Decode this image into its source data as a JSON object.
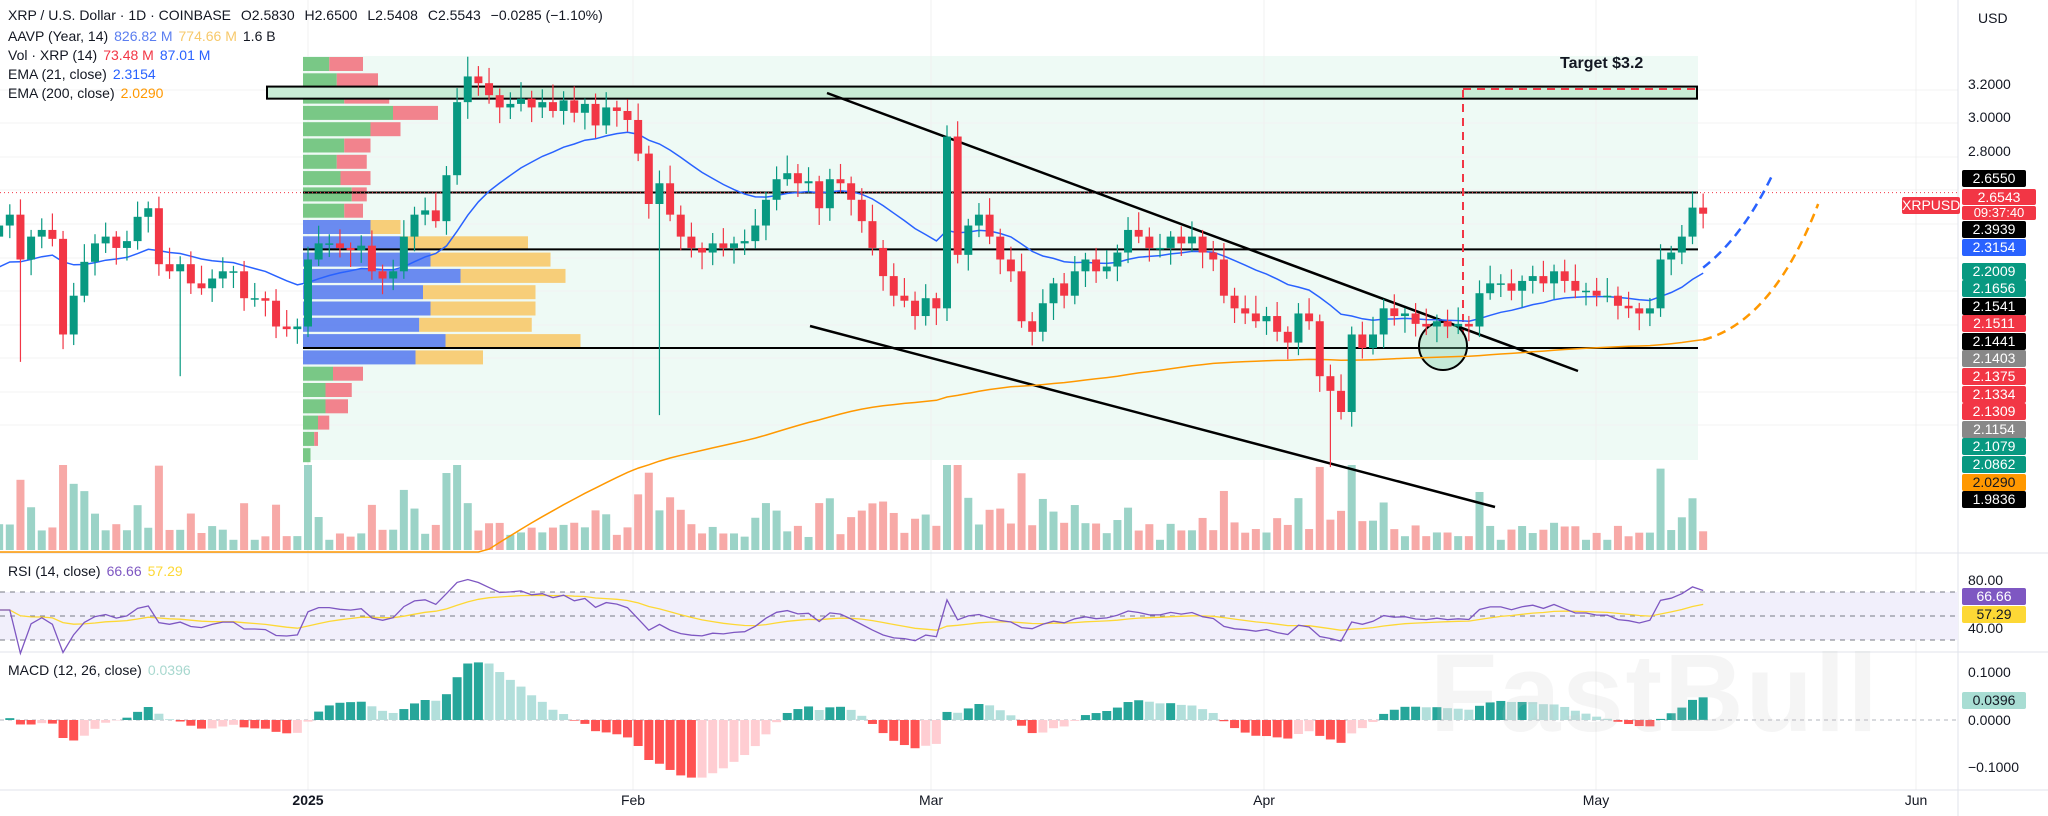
{
  "header": {
    "title": "XRP / U.S. Dollar · 1D · COINBASE",
    "open": "O2.5830",
    "high": "H2.6500",
    "low": "L2.5408",
    "close": "C2.5543",
    "change": "−0.0285 (−1.10%)"
  },
  "legends": {
    "aavp": {
      "label": "AAVP (Year, 14)",
      "v1": "826.82 M",
      "v2": "774.66 M",
      "v3": "1.6 B"
    },
    "vol": {
      "label": "Vol · XRP (14)",
      "v1": "73.48 M",
      "v2": "87.01 M"
    },
    "ema21": {
      "label": "EMA (21, close)",
      "value": "2.3154"
    },
    "ema200": {
      "label": "EMA (200, close)",
      "value": "2.0290"
    },
    "rsi": {
      "label": "RSI (14, close)",
      "v1": "66.66",
      "v2": "57.29"
    },
    "macd": {
      "label": "MACD (12, 26, close)",
      "value": "0.0396"
    }
  },
  "colors": {
    "up": "#089981",
    "down": "#f23645",
    "ema21": "#2962ff",
    "ema200": "#ff9800",
    "rsi": "#7e57c2",
    "rsi_ma": "#fdd835",
    "zone": "#e8f7f1"
  },
  "annotations": {
    "target": "Target $3.2"
  },
  "price_axis": {
    "currency": "USD",
    "ticks": [
      "3.2000",
      "3.0000",
      "2.8000"
    ],
    "symbol_tag": "XRPUSD",
    "countdown": "09:37:40",
    "tags": [
      {
        "text": "2.6550",
        "color": "#000000"
      },
      {
        "text": "2.6543",
        "color": "#f23645"
      },
      {
        "text": "2.3939",
        "color": "#000000"
      },
      {
        "text": "2.3154",
        "color": "#2962ff"
      },
      {
        "text": "2.2009",
        "color": "#089981"
      },
      {
        "text": "2.1656",
        "color": "#089981"
      },
      {
        "text": "2.1541",
        "color": "#000000"
      },
      {
        "text": "2.1511",
        "color": "#f23645"
      },
      {
        "text": "2.1441",
        "color": "#000000"
      },
      {
        "text": "2.1403",
        "color": "#888888"
      },
      {
        "text": "2.1375",
        "color": "#f23645"
      },
      {
        "text": "2.1334",
        "color": "#f23645"
      },
      {
        "text": "2.1309",
        "color": "#f23645"
      },
      {
        "text": "2.1154",
        "color": "#888888"
      },
      {
        "text": "2.1079",
        "color": "#089981"
      },
      {
        "text": "2.0862",
        "color": "#089981"
      },
      {
        "text": "2.0290",
        "color": "#ff9800"
      },
      {
        "text": "1.9836",
        "color": "#000000"
      }
    ]
  },
  "rsi_axis": {
    "ticks": [
      "80.00",
      "40.00"
    ],
    "tag1": "66.66",
    "tag2": "57.29"
  },
  "macd_axis": {
    "ticks": [
      "0.1000",
      "0.0000",
      "−0.1000"
    ],
    "tag": "0.0396"
  },
  "time_axis": [
    "2025",
    "Feb",
    "Mar",
    "Apr",
    "May",
    "Jun"
  ],
  "watermark": "FastBull",
  "chart_data": {
    "type": "candlestick",
    "start_date": "2024-12-03",
    "interval": "1D",
    "y_scale": "log",
    "closes": [
      2.5,
      2.55,
      2.35,
      2.45,
      2.48,
      2.44,
      2.05,
      2.2,
      2.34,
      2.42,
      2.45,
      2.4,
      2.43,
      2.54,
      2.58,
      2.33,
      2.3,
      2.33,
      2.25,
      2.23,
      2.27,
      2.3,
      2.3,
      2.19,
      2.19,
      2.18,
      2.08,
      2.07,
      2.08,
      2.35,
      2.42,
      2.42,
      2.4,
      2.39,
      2.41,
      2.3,
      2.27,
      2.3,
      2.45,
      2.55,
      2.57,
      2.52,
      2.74,
      3.13,
      3.28,
      3.24,
      3.17,
      3.1,
      3.12,
      3.15,
      3.1,
      3.13,
      3.08,
      3.14,
      3.07,
      3.12,
      3.0,
      3.1,
      3.08,
      3.03,
      2.85,
      2.6,
      2.7,
      2.55,
      2.45,
      2.4,
      2.38,
      2.42,
      2.4,
      2.42,
      2.43,
      2.5,
      2.62,
      2.72,
      2.75,
      2.7,
      2.71,
      2.58,
      2.72,
      2.7,
      2.62,
      2.52,
      2.4,
      2.28,
      2.2,
      2.18,
      2.12,
      2.19,
      2.15,
      2.94,
      2.37,
      2.5,
      2.55,
      2.45,
      2.35,
      2.3,
      2.1,
      2.06,
      2.17,
      2.25,
      2.2,
      2.3,
      2.35,
      2.3,
      2.32,
      2.38,
      2.48,
      2.45,
      2.4,
      2.4,
      2.45,
      2.42,
      2.45,
      2.38,
      2.35,
      2.2,
      2.15,
      2.13,
      2.1,
      2.12,
      2.06,
      2.02,
      2.13,
      2.1,
      1.9,
      1.85,
      1.78,
      2.05,
      2.0,
      2.05,
      2.15,
      2.12,
      2.13,
      2.09,
      2.08,
      2.1,
      2.08,
      2.09,
      2.08,
      2.21,
      2.25,
      2.25,
      2.22,
      2.26,
      2.28,
      2.25,
      2.3,
      2.26,
      2.22,
      2.22,
      2.2,
      2.2,
      2.16,
      2.15,
      2.13,
      2.15,
      2.35,
      2.38,
      2.45,
      2.583,
      2.5543
    ],
    "notable_highs": {
      "2024-12-03": 2.9,
      "2025-01-16": 3.4,
      "2025-03-02": 3.0,
      "2025-05-12": 2.65
    },
    "notable_lows": {
      "2024-12-05": 1.95,
      "2024-12-20": 1.9,
      "2025-02-03": 1.77,
      "2025-04-07": 1.61
    },
    "levels": [
      3.2,
      2.655,
      2.3939,
      2.0
    ],
    "target": 3.2,
    "rsi_levels": [
      70,
      50,
      30
    ]
  }
}
